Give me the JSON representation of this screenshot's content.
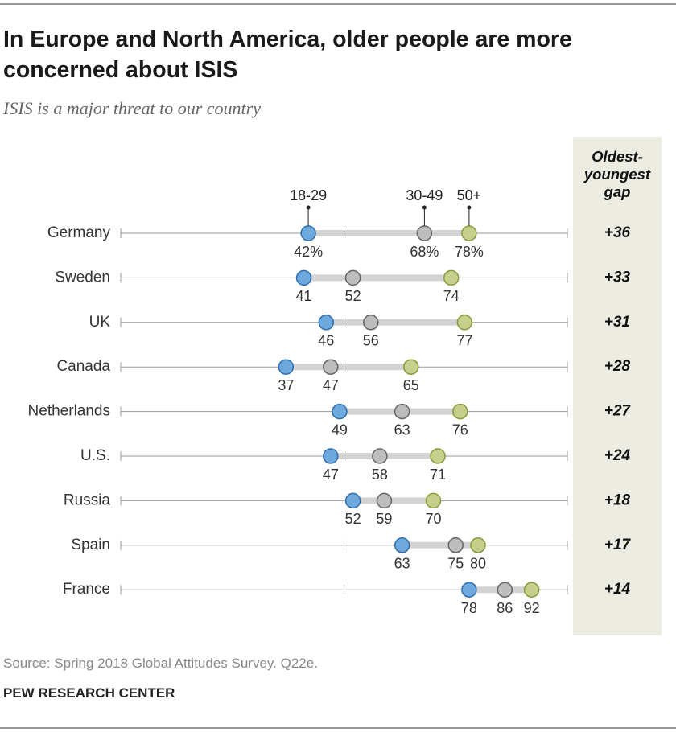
{
  "chart_data": {
    "type": "dot",
    "title": "In Europe and North America, older people are more concerned about ISIS",
    "subtitle": "ISIS is a major threat to our country",
    "categories": [
      "Germany",
      "Sweden",
      "UK",
      "Canada",
      "Netherlands",
      "U.S.",
      "Russia",
      "Spain",
      "France"
    ],
    "series": [
      {
        "name": "18-29",
        "color": "#6fa8dc",
        "values": [
          42,
          41,
          46,
          37,
          49,
          47,
          52,
          63,
          78
        ],
        "value_labels": [
          "42%",
          "41",
          "46",
          "37",
          "49",
          "47",
          "52",
          "63",
          "78"
        ]
      },
      {
        "name": "30-49",
        "color": "#bdbdbd",
        "values": [
          68,
          52,
          56,
          47,
          63,
          58,
          59,
          75,
          86
        ],
        "value_labels": [
          "68%",
          "52",
          "56",
          "47",
          "63",
          "58",
          "59",
          "75",
          "86"
        ]
      },
      {
        "name": "50+",
        "color": "#c6cf8c",
        "values": [
          78,
          74,
          77,
          65,
          76,
          71,
          70,
          80,
          92
        ],
        "value_labels": [
          "78%",
          "74",
          "77",
          "65",
          "76",
          "71",
          "70",
          "80",
          "92"
        ]
      }
    ],
    "xlim": [
      0,
      100
    ],
    "xticks": [
      0,
      50,
      100
    ],
    "gap": {
      "title": "Oldest-\nyoungest\ngap",
      "values": [
        36,
        33,
        31,
        28,
        27,
        24,
        18,
        17,
        14
      ],
      "value_labels": [
        "+36",
        "+33",
        "+31",
        "+28",
        "+27",
        "+24",
        "+18",
        "+17",
        "+14"
      ]
    },
    "source": "Source: Spring 2018 Global Attitudes Survey. Q22e.",
    "credit": "PEW RESEARCH CENTER"
  }
}
